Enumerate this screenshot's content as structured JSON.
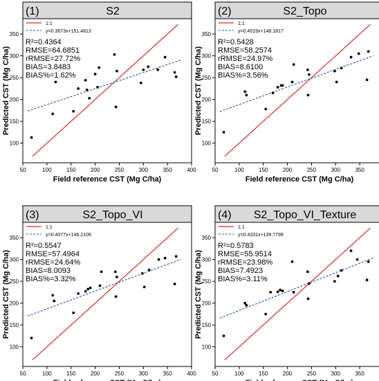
{
  "figure": {
    "xlabel": "Field reference CST (Mg C/ha)",
    "ylabel": "Predicted CST (Mg C/ha)",
    "x_ticks": [
      50,
      100,
      150,
      200,
      250,
      300,
      350,
      400
    ],
    "y_ticks": [
      100,
      150,
      200,
      250,
      300,
      350
    ],
    "colors": {
      "one_to_one": "#d42a2a",
      "fit": "#1f4fb4",
      "points": "#000000",
      "header_bg": "#d9d9d9"
    }
  },
  "chart_data": [
    {
      "type": "scatter",
      "label": "(1)",
      "title": "S2",
      "legend": [
        "1:1",
        "y=0.3673x+151.4813"
      ],
      "stats": [
        "R²=0.4364",
        "RMSE=64.6851",
        "rRMSE=27.72%",
        "BIAS=3.8483",
        "BIAS%=1.62%"
      ],
      "fit": {
        "slope": 0.3673,
        "intercept": 151.4813
      },
      "xlim": [
        50,
        400
      ],
      "ylim": [
        55,
        385
      ],
      "points": [
        [
          68,
          113
        ],
        [
          112,
          167
        ],
        [
          118,
          240
        ],
        [
          155,
          173
        ],
        [
          165,
          225
        ],
        [
          180,
          244
        ],
        [
          183,
          222
        ],
        [
          188,
          203
        ],
        [
          200,
          258
        ],
        [
          205,
          228
        ],
        [
          208,
          273
        ],
        [
          240,
          303
        ],
        [
          243,
          183
        ],
        [
          245,
          265
        ],
        [
          295,
          238
        ],
        [
          300,
          268
        ],
        [
          310,
          275
        ],
        [
          330,
          268
        ],
        [
          345,
          297
        ],
        [
          365,
          262
        ],
        [
          368,
          252
        ]
      ]
    },
    {
      "type": "scatter",
      "label": "(2)",
      "title": "S2_Topo",
      "legend": [
        "1:1",
        "y=0.4019x+148.1817"
      ],
      "stats": [
        "R²=0.5428",
        "RMSE=58.2574",
        "rRMSE=24.97%",
        "BIAS=8.6100",
        "BIAS%=3.56%"
      ],
      "fit": {
        "slope": 0.4019,
        "intercept": 148.1817
      },
      "xlim": [
        50,
        400
      ],
      "ylim": [
        55,
        385
      ],
      "points": [
        [
          68,
          125
        ],
        [
          112,
          218
        ],
        [
          115,
          210
        ],
        [
          155,
          178
        ],
        [
          170,
          215
        ],
        [
          180,
          228
        ],
        [
          187,
          232
        ],
        [
          190,
          232
        ],
        [
          210,
          240
        ],
        [
          213,
          280
        ],
        [
          242,
          268
        ],
        [
          243,
          210
        ],
        [
          245,
          257
        ],
        [
          298,
          265
        ],
        [
          302,
          240
        ],
        [
          312,
          272
        ],
        [
          332,
          297
        ],
        [
          348,
          305
        ],
        [
          365,
          245
        ],
        [
          368,
          310
        ]
      ]
    },
    {
      "type": "scatter",
      "label": "(3)",
      "title": "S2_Topo_VI",
      "legend": [
        "1:1",
        "y=0.4077x+146.2109"
      ],
      "stats": [
        "R²=0.5547",
        "RMSE=57.4964",
        "rRMSE=24.64%",
        "BIAS=8.0093",
        "BIAS%=3.32%"
      ],
      "fit": {
        "slope": 0.4077,
        "intercept": 146.2109
      },
      "xlim": [
        50,
        400
      ],
      "ylim": [
        55,
        385
      ],
      "points": [
        [
          68,
          120
        ],
        [
          112,
          218
        ],
        [
          115,
          205
        ],
        [
          155,
          178
        ],
        [
          165,
          222
        ],
        [
          180,
          227
        ],
        [
          185,
          232
        ],
        [
          190,
          235
        ],
        [
          210,
          240
        ],
        [
          213,
          272
        ],
        [
          242,
          272
        ],
        [
          243,
          215
        ],
        [
          245,
          260
        ],
        [
          298,
          268
        ],
        [
          302,
          237
        ],
        [
          312,
          276
        ],
        [
          332,
          300
        ],
        [
          345,
          303
        ],
        [
          365,
          244
        ],
        [
          368,
          307
        ]
      ]
    },
    {
      "type": "scatter",
      "label": "(4)",
      "title": "S2_Topo_VI_Texture",
      "legend": [
        "1:1",
        "y=0.4331x+139.7799"
      ],
      "stats": [
        "R²=0.5783",
        "RMSE=55.9514",
        "rRMSE=23.98%",
        "BIAS=7.4923",
        "BIAS%=3.11%"
      ],
      "fit": {
        "slope": 0.4331,
        "intercept": 139.7799
      },
      "xlim": [
        50,
        400
      ],
      "ylim": [
        55,
        385
      ],
      "points": [
        [
          68,
          125
        ],
        [
          112,
          200
        ],
        [
          115,
          195
        ],
        [
          155,
          175
        ],
        [
          165,
          225
        ],
        [
          180,
          226
        ],
        [
          185,
          230
        ],
        [
          190,
          228
        ],
        [
          210,
          295
        ],
        [
          213,
          225
        ],
        [
          242,
          272
        ],
        [
          243,
          210
        ],
        [
          245,
          245
        ],
        [
          298,
          250
        ],
        [
          305,
          262
        ],
        [
          312,
          275
        ],
        [
          332,
          320
        ],
        [
          345,
          300
        ],
        [
          365,
          253
        ],
        [
          368,
          295
        ]
      ]
    }
  ]
}
